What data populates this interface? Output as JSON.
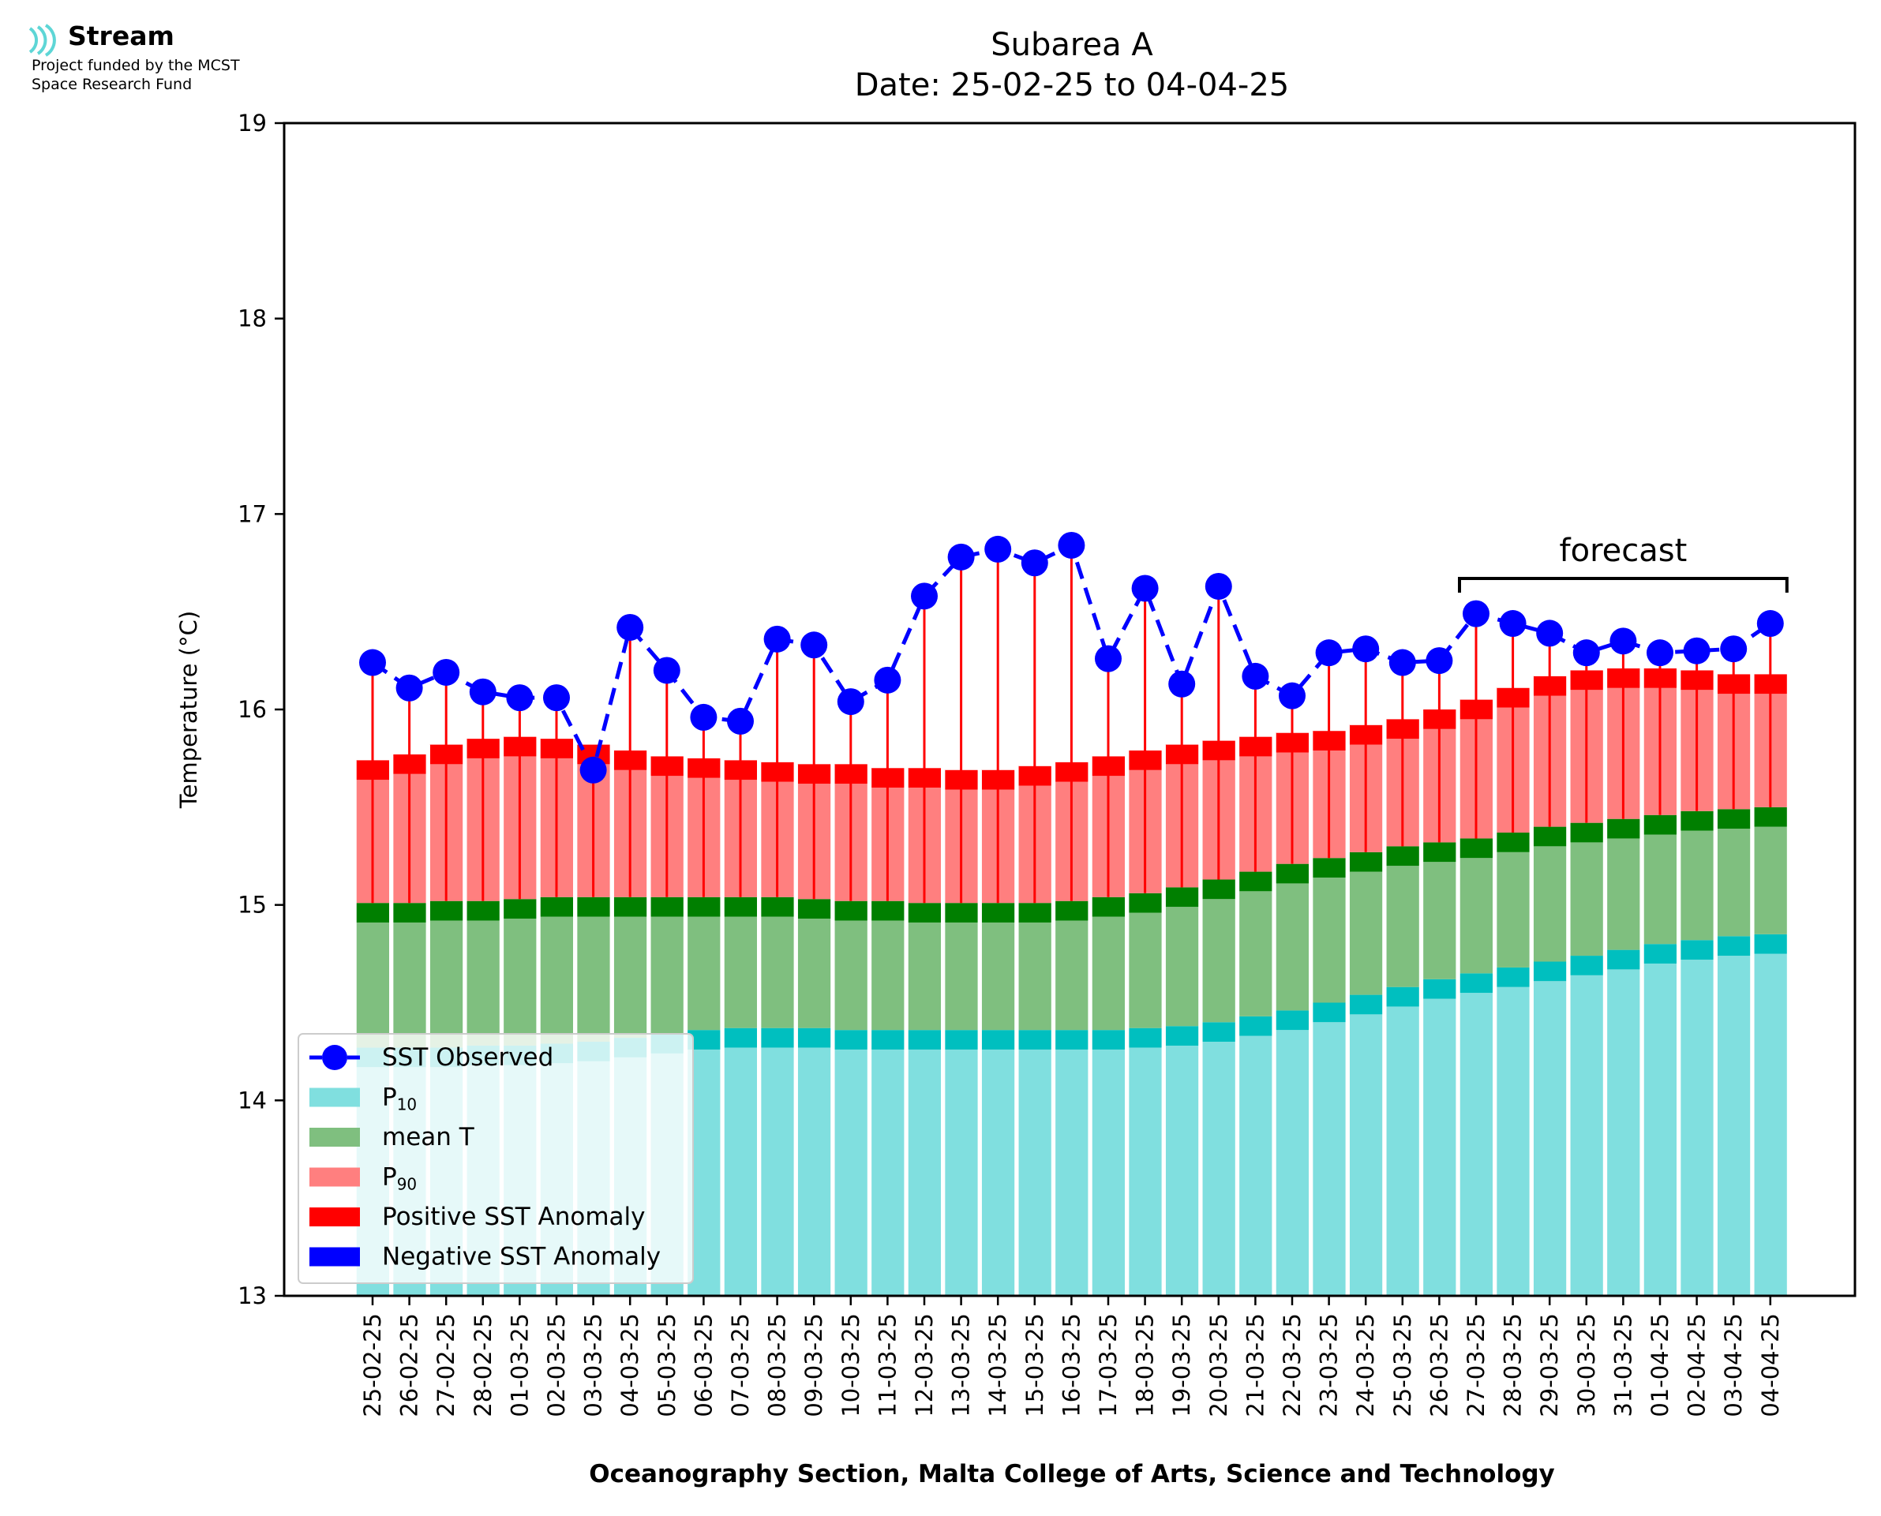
{
  "branding": {
    "name": "Stream",
    "funding_line_1": "Project funded by the MCST",
    "funding_line_2": "Space Research Fund",
    "logo_color": "#5ed6d6"
  },
  "colors": {
    "p10": "#80dfdf",
    "p10_cap": "#00bfbf",
    "mean": "#7fbf7f",
    "mean_cap": "#007f00",
    "p90": "#ff7f7f",
    "p90_cap": "#ff0000",
    "positive_anomaly": "#ff0000",
    "negative_anomaly": "#0000ff",
    "observed": "#0000ff"
  },
  "chart_data": {
    "type": "bar",
    "title": "Subarea A",
    "subtitle": "Date: 25-02-25 to 04-04-25",
    "xlabel": "Oceanography Section, Malta College of Arts, Science and Technology",
    "ylabel": "Temperature (°C)",
    "ylim": [
      13,
      19
    ],
    "yticks": [
      13,
      14,
      15,
      16,
      17,
      18,
      19
    ],
    "grid": false,
    "legend_position": "bottom-left",
    "categories": [
      "25-02-25",
      "26-02-25",
      "27-02-25",
      "28-02-25",
      "01-03-25",
      "02-03-25",
      "03-03-25",
      "04-03-25",
      "05-03-25",
      "06-03-25",
      "07-03-25",
      "08-03-25",
      "09-03-25",
      "10-03-25",
      "11-03-25",
      "12-03-25",
      "13-03-25",
      "14-03-25",
      "15-03-25",
      "16-03-25",
      "17-03-25",
      "18-03-25",
      "19-03-25",
      "20-03-25",
      "21-03-25",
      "22-03-25",
      "23-03-25",
      "24-03-25",
      "25-03-25",
      "26-03-25",
      "27-03-25",
      "28-03-25",
      "29-03-25",
      "30-03-25",
      "31-03-25",
      "01-04-25",
      "02-04-25",
      "03-04-25",
      "04-04-25"
    ],
    "series": [
      {
        "name": "P",
        "subscript": "10",
        "values": [
          14.27,
          14.27,
          14.27,
          14.28,
          14.28,
          14.29,
          14.3,
          14.32,
          14.34,
          14.36,
          14.37,
          14.37,
          14.37,
          14.36,
          14.36,
          14.36,
          14.36,
          14.36,
          14.36,
          14.36,
          14.36,
          14.37,
          14.38,
          14.4,
          14.43,
          14.46,
          14.5,
          14.54,
          14.58,
          14.62,
          14.65,
          14.68,
          14.71,
          14.74,
          14.77,
          14.8,
          14.82,
          14.84,
          14.85
        ]
      },
      {
        "name": "mean T",
        "values": [
          15.01,
          15.01,
          15.02,
          15.02,
          15.03,
          15.04,
          15.04,
          15.04,
          15.04,
          15.04,
          15.04,
          15.04,
          15.03,
          15.02,
          15.02,
          15.01,
          15.01,
          15.01,
          15.01,
          15.02,
          15.04,
          15.06,
          15.09,
          15.13,
          15.17,
          15.21,
          15.24,
          15.27,
          15.3,
          15.32,
          15.34,
          15.37,
          15.4,
          15.42,
          15.44,
          15.46,
          15.48,
          15.49,
          15.5
        ]
      },
      {
        "name": "P",
        "subscript": "90",
        "values": [
          15.74,
          15.77,
          15.82,
          15.85,
          15.86,
          15.85,
          15.82,
          15.79,
          15.76,
          15.75,
          15.74,
          15.73,
          15.72,
          15.72,
          15.7,
          15.7,
          15.69,
          15.69,
          15.71,
          15.73,
          15.76,
          15.79,
          15.82,
          15.84,
          15.86,
          15.88,
          15.89,
          15.92,
          15.95,
          16.0,
          16.05,
          16.11,
          16.17,
          16.2,
          16.21,
          16.21,
          16.2,
          16.18,
          16.18
        ]
      },
      {
        "name": "SST Observed",
        "values": [
          16.24,
          16.11,
          16.19,
          16.09,
          16.06,
          16.06,
          15.69,
          16.42,
          16.2,
          15.96,
          15.94,
          16.36,
          16.33,
          16.04,
          16.15,
          16.58,
          16.78,
          16.82,
          16.75,
          16.84,
          16.26,
          16.62,
          16.13,
          16.63,
          16.17,
          16.07,
          16.29,
          16.31,
          16.24,
          16.25,
          16.49,
          16.44,
          16.39,
          16.29,
          16.35,
          16.29,
          16.3,
          16.31,
          16.44
        ]
      },
      {
        "name": "Positive SST Anomaly"
      },
      {
        "name": "Negative SST Anomaly"
      }
    ],
    "annotations": [
      {
        "text": "forecast",
        "from": "27-03-25",
        "to": "04-04-25"
      }
    ]
  }
}
